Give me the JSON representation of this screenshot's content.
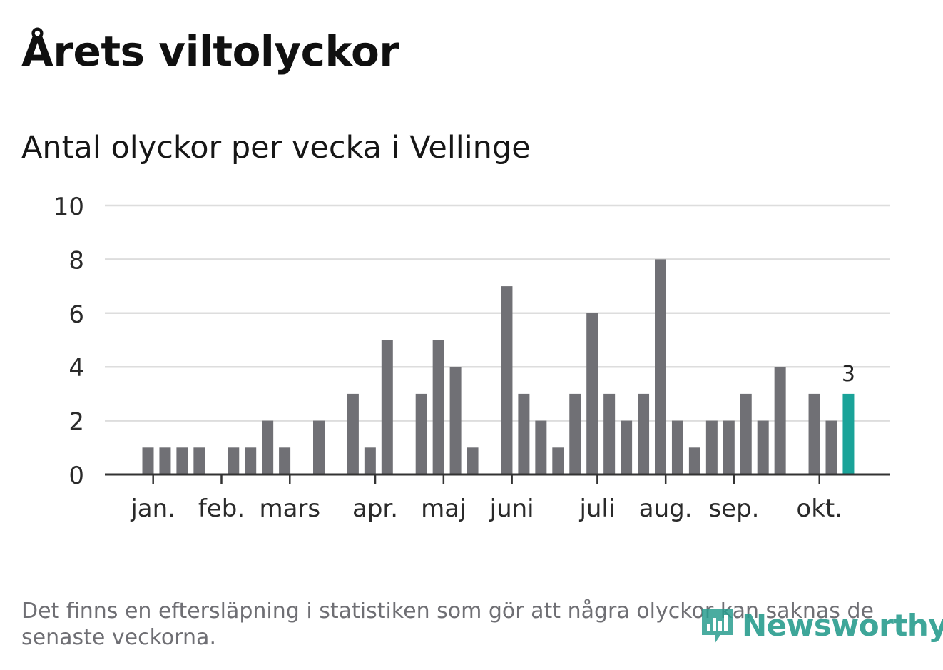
{
  "header": {
    "title": "Årets viltolyckor",
    "subtitle": "Antal olyckor per vecka i Vellinge"
  },
  "footer": {
    "note": "Det finns en eftersläpning i statistiken som gör att några olyckor kan saknas de senaste veckorna.",
    "brand": "Newsworthy"
  },
  "colors": {
    "bar": "#707075",
    "highlight": "#1aa399",
    "grid": "#dddddd",
    "axis": "#333333"
  },
  "chart_data": {
    "type": "bar",
    "title": "Antal olyckor per vecka i Vellinge",
    "xlabel": "",
    "ylabel": "",
    "ylim": [
      0,
      10
    ],
    "yticks": [
      0,
      2,
      4,
      6,
      8,
      10
    ],
    "grid": true,
    "weeks": [
      1,
      2,
      3,
      4,
      5,
      6,
      7,
      8,
      9,
      10,
      11,
      12,
      13,
      14,
      15,
      16,
      17,
      18,
      19,
      20,
      21,
      22,
      23,
      24,
      25,
      26,
      27,
      28,
      29,
      30,
      31,
      32,
      33,
      34,
      35,
      36,
      37,
      38,
      39,
      40,
      41,
      42
    ],
    "values": [
      1,
      1,
      1,
      1,
      0,
      1,
      1,
      2,
      1,
      0,
      2,
      0,
      3,
      1,
      5,
      0,
      3,
      5,
      4,
      1,
      0,
      7,
      3,
      2,
      1,
      3,
      6,
      3,
      2,
      3,
      8,
      2,
      1,
      2,
      2,
      3,
      2,
      4,
      0,
      3,
      2,
      3
    ],
    "month_ticks": [
      {
        "label": "jan.",
        "week": 1.3
      },
      {
        "label": "feb.",
        "week": 5.3
      },
      {
        "label": "mars",
        "week": 9.3
      },
      {
        "label": "apr.",
        "week": 14.3
      },
      {
        "label": "maj",
        "week": 18.3
      },
      {
        "label": "juni",
        "week": 22.3
      },
      {
        "label": "juli",
        "week": 27.3
      },
      {
        "label": "aug.",
        "week": 31.3
      },
      {
        "label": "sep.",
        "week": 35.3
      },
      {
        "label": "okt.",
        "week": 40.3
      }
    ],
    "highlight_last": true,
    "annotation": {
      "week": 42,
      "text": "3"
    }
  }
}
